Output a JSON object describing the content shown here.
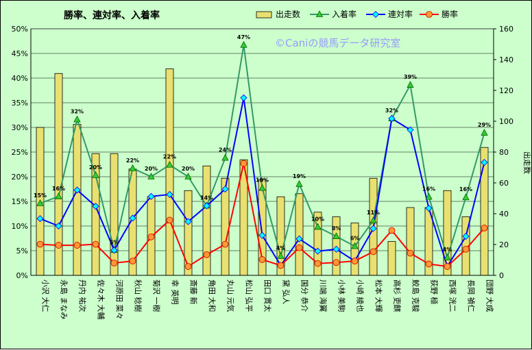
{
  "chart_data": {
    "type": "bar+line",
    "title": "勝率、連対率、入着率",
    "watermark": "©Caniの競馬データ研究室",
    "y2label": "出走数",
    "y1lim": [
      0,
      50
    ],
    "y1ticks": [
      "0%",
      "5%",
      "10%",
      "15%",
      "20%",
      "25%",
      "30%",
      "35%",
      "40%",
      "45%",
      "50%"
    ],
    "y2lim": [
      0,
      160
    ],
    "y2ticks": [
      "0",
      "20",
      "40",
      "60",
      "80",
      "100",
      "120",
      "140",
      "160"
    ],
    "categories": [
      "小沢 大仁",
      "永島 まなみ",
      "丹内 祐次",
      "佐々木 大輔",
      "河原田 菜々",
      "秋山 稔樹",
      "菊沢 一樹",
      "幸 英明",
      "斎藤 新",
      "角田 大和",
      "丸山 元気",
      "松山 弘平",
      "田口 貫太",
      "黛 弘人",
      "国分 恭介",
      "川端 海翼",
      "小林 美駒",
      "小崎 綾也",
      "松本 大輝",
      "高杉 吏麒",
      "鮫島 克駿",
      "荻野 極",
      "西塚 洸二",
      "長岡 禎仁",
      "団野 大成"
    ],
    "series": [
      {
        "name": "出走数",
        "type": "bar",
        "axis": "y2",
        "color": "#e8e070",
        "values": [
          96,
          131,
          98,
          79,
          79,
          69,
          51,
          134,
          55,
          71,
          63,
          75,
          62,
          51,
          53,
          41,
          38,
          34,
          63,
          22,
          44,
          44,
          55,
          38,
          83
        ]
      },
      {
        "name": "入着率",
        "type": "line",
        "axis": "y1",
        "color": "#339966",
        "values": [
          14.6,
          16.0,
          31.6,
          20.3,
          5.1,
          21.7,
          20.0,
          22.4,
          20.0,
          14.1,
          23.8,
          46.7,
          17.7,
          3.9,
          18.5,
          9.8,
          7.9,
          5.9,
          11.1,
          31.8,
          38.6,
          15.9,
          3.6,
          15.8,
          28.9
        ]
      },
      {
        "name": "連対率",
        "type": "line",
        "axis": "y1",
        "color": "#0000ff",
        "values": [
          11.5,
          10.0,
          17.3,
          14.0,
          5.1,
          11.6,
          16.0,
          16.4,
          10.9,
          14.1,
          17.5,
          36.0,
          8.1,
          2.0,
          7.4,
          4.9,
          5.3,
          2.9,
          9.5,
          31.8,
          29.5,
          13.6,
          1.8,
          7.9,
          22.9
        ]
      },
      {
        "name": "勝率",
        "type": "line",
        "axis": "y1",
        "color": "#ff0000",
        "values": [
          6.3,
          6.1,
          6.1,
          6.3,
          2.5,
          2.9,
          7.8,
          11.2,
          1.8,
          4.2,
          6.3,
          22.7,
          3.2,
          2.0,
          5.6,
          2.4,
          2.6,
          2.9,
          4.8,
          9.1,
          4.5,
          2.3,
          1.8,
          5.3,
          9.6
        ]
      }
    ],
    "data_labels": [
      "15%",
      "16%",
      "32%",
      "20%",
      "5%",
      "22%",
      "20%",
      "22%",
      "20%",
      "14%",
      "24%",
      "47%",
      "18%",
      "4%",
      "19%",
      "10%",
      "8%",
      "6%",
      "11%",
      "32%",
      "39%",
      "16%",
      "4%",
      "16%",
      "29%"
    ]
  }
}
